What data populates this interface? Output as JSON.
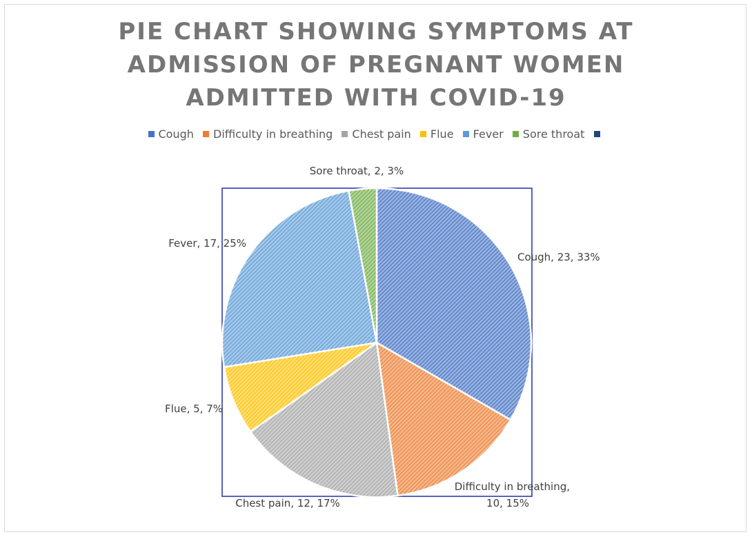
{
  "chart_data": {
    "type": "pie",
    "title_lines": [
      "PIE CHART SHOWING SYMPTOMS AT",
      "ADMISSION OF PREGNANT WOMEN",
      "ADMITTED WITH COVID-19"
    ],
    "legend_placement": "top",
    "slices": [
      {
        "name": "Cough",
        "value": 23,
        "percent": "33%",
        "color": "#4472c4",
        "label": "Cough, 23, 33%"
      },
      {
        "name": "Difficulty in breathing",
        "value": 10,
        "percent": "15%",
        "color": "#ed7d31",
        "label_lines": [
          "Difficulty in breathing,",
          "10, 15%"
        ]
      },
      {
        "name": "Chest pain",
        "value": 12,
        "percent": "17%",
        "color": "#a5a5a5",
        "label": "Chest pain, 12, 17%"
      },
      {
        "name": "Flue",
        "value": 5,
        "percent": "7%",
        "color": "#ffc000",
        "label": "Flue, 5, 7%"
      },
      {
        "name": "Fever",
        "value": 17,
        "percent": "25%",
        "color": "#5b9bd5",
        "label": "Fever, 17, 25%"
      },
      {
        "name": "Sore throat",
        "value": 2,
        "percent": "3%",
        "color": "#70ad47",
        "label": "Sore throat, 2, 3%"
      }
    ],
    "extra_legend_swatch_color": "#264478"
  }
}
